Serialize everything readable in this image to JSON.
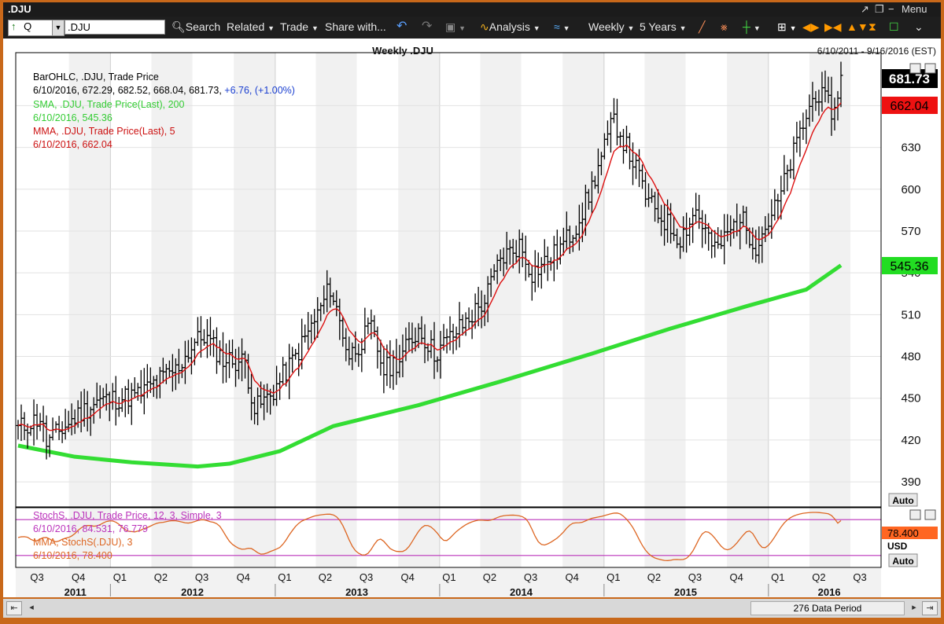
{
  "window": {
    "title": ".DJU",
    "menu_label": "Menu"
  },
  "toolbar": {
    "symbol_type": "Q",
    "symbol_value": ".DJU",
    "search_label": "Search",
    "related_label": "Related",
    "trade_label": "Trade",
    "share_label": "Share with...",
    "analysis_label": "Analysis",
    "period_label": "Weekly",
    "range_label": "5 Years"
  },
  "chart": {
    "title": "Weekly .DJU",
    "date_range": "6/10/2011 - 9/16/2016 (EST)",
    "legend": {
      "l1": "BarOHLC, .DJU, Trade Price",
      "l2_prefix": "6/10/2016, 672.29, 682.52, 668.04, 681.73, ",
      "l2_change": "+6.76, (+1.00%)",
      "l3": "SMA, .DJU, Trade Price(Last),  200",
      "l4": "6/10/2016, 545.36",
      "l5": "MMA, .DJU, Trade Price(Last),  5",
      "l6": "6/10/2016, 662.04"
    },
    "badges": {
      "last": "681.73",
      "mma": "662.04",
      "sma": "545.36"
    },
    "auto_label": "Auto",
    "currency": "USD",
    "colors": {
      "price": "#000000",
      "sma": "#33dd33",
      "mma": "#dd1111",
      "stoch": "#dd6622",
      "stoch_levels": "#bb33bb",
      "badge_mma": "#ee1111",
      "badge_sma": "#22dd22",
      "badge_stoch": "#ff6622"
    }
  },
  "stoch": {
    "l1": "StochS, .DJU, Trade Price,  12, 3, Simple, 3",
    "l2": "6/10/2016, 84.531, 76.779",
    "l3": "MMA, StochS(.DJU),  3",
    "l4": "6/10/2016, 78.400",
    "badge": "78.400"
  },
  "x_axis": {
    "quarters": [
      "Q3",
      "Q4",
      "Q1",
      "Q2",
      "Q3",
      "Q4",
      "Q1",
      "Q2",
      "Q3",
      "Q4",
      "Q1",
      "Q2",
      "Q3",
      "Q4",
      "Q1",
      "Q2",
      "Q3",
      "Q4",
      "Q1",
      "Q2",
      "Q3"
    ],
    "years": [
      "2011",
      "2012",
      "2013",
      "2014",
      "2015",
      "2016"
    ]
  },
  "scrollbar": {
    "label": "276 Data Period"
  },
  "chart_data": {
    "type": "line",
    "title": "Weekly .DJU",
    "x_range": [
      "6/10/2011",
      "9/16/2016"
    ],
    "ylim": [
      372,
      698
    ],
    "yticks": [
      390,
      420,
      450,
      480,
      510,
      540,
      570,
      600,
      630,
      660
    ],
    "price_path": [
      [
        "2011-06-10",
        428
      ],
      [
        "2011-07-29",
        436
      ],
      [
        "2011-08-12",
        418
      ],
      [
        "2011-09-23",
        430
      ],
      [
        "2011-10-28",
        440
      ],
      [
        "2011-12-02",
        448
      ],
      [
        "2012-01-20",
        450
      ],
      [
        "2012-03-02",
        452
      ],
      [
        "2012-04-13",
        462
      ],
      [
        "2012-05-25",
        470
      ],
      [
        "2012-07-06",
        490
      ],
      [
        "2012-07-27",
        495
      ],
      [
        "2012-09-07",
        478
      ],
      [
        "2012-10-26",
        476
      ],
      [
        "2012-11-16",
        442
      ],
      [
        "2012-12-21",
        452
      ],
      [
        "2013-02-15",
        480
      ],
      [
        "2013-04-05",
        510
      ],
      [
        "2013-05-03",
        530
      ],
      [
        "2013-06-14",
        480
      ],
      [
        "2013-08-02",
        500
      ],
      [
        "2013-08-30",
        470
      ],
      [
        "2013-10-04",
        478
      ],
      [
        "2013-11-15",
        500
      ],
      [
        "2013-12-20",
        482
      ],
      [
        "2014-02-14",
        500
      ],
      [
        "2014-04-11",
        520
      ],
      [
        "2014-05-16",
        550
      ],
      [
        "2014-06-27",
        560
      ],
      [
        "2014-07-25",
        540
      ],
      [
        "2014-09-19",
        555
      ],
      [
        "2014-10-24",
        570
      ],
      [
        "2014-11-28",
        595
      ],
      [
        "2015-01-23",
        650
      ],
      [
        "2015-03-06",
        620
      ],
      [
        "2015-04-10",
        590
      ],
      [
        "2015-06-19",
        565
      ],
      [
        "2015-07-24",
        585
      ],
      [
        "2015-09-04",
        555
      ],
      [
        "2015-10-30",
        580
      ],
      [
        "2015-12-04",
        560
      ],
      [
        "2016-01-22",
        590
      ],
      [
        "2016-03-11",
        640
      ],
      [
        "2016-04-15",
        670
      ],
      [
        "2016-05-27",
        655
      ],
      [
        "2016-06-10",
        681.73
      ]
    ],
    "series": [
      {
        "name": "SMA, .DJU, Trade Price(Last),  200",
        "values": [
          [
            "2011-06-10",
            416
          ],
          [
            "2011-10-14",
            408
          ],
          [
            "2012-02-17",
            404
          ],
          [
            "2012-07-13",
            401
          ],
          [
            "2012-09-21",
            403
          ],
          [
            "2013-01-11",
            412
          ],
          [
            "2013-05-10",
            430
          ],
          [
            "2013-11-15",
            445
          ],
          [
            "2014-05-16",
            462
          ],
          [
            "2014-12-05",
            482
          ],
          [
            "2015-05-29",
            500
          ],
          [
            "2015-11-13",
            516
          ],
          [
            "2016-03-25",
            528
          ],
          [
            "2016-06-10",
            545.36
          ]
        ]
      },
      {
        "name": "MMA, .DJU, Trade Price(Last),  5",
        "last": 662.04
      },
      {
        "name": "StochS, .DJU, Trade Price,  12, 3, Simple, 3",
        "last": [
          84.531,
          76.779
        ]
      },
      {
        "name": "MMA, StochS(.DJU),  3",
        "last": 78.4,
        "levels": [
          80,
          20
        ]
      }
    ]
  }
}
